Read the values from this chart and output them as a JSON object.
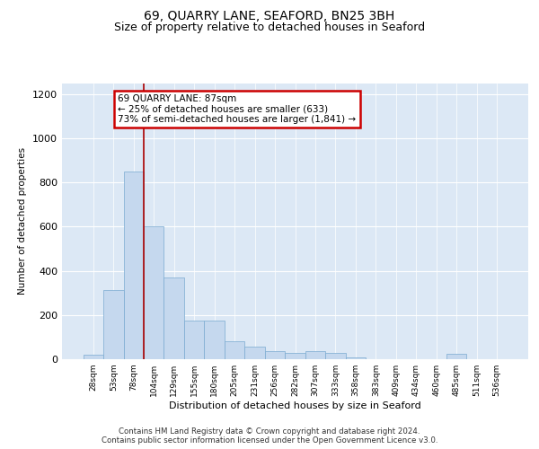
{
  "title": "69, QUARRY LANE, SEAFORD, BN25 3BH",
  "subtitle": "Size of property relative to detached houses in Seaford",
  "xlabel": "Distribution of detached houses by size in Seaford",
  "ylabel": "Number of detached properties",
  "categories": [
    "28sqm",
    "53sqm",
    "78sqm",
    "104sqm",
    "129sqm",
    "155sqm",
    "180sqm",
    "205sqm",
    "231sqm",
    "256sqm",
    "282sqm",
    "307sqm",
    "333sqm",
    "358sqm",
    "383sqm",
    "409sqm",
    "434sqm",
    "460sqm",
    "485sqm",
    "511sqm",
    "536sqm"
  ],
  "values": [
    20,
    315,
    850,
    600,
    370,
    175,
    175,
    80,
    55,
    35,
    30,
    35,
    30,
    10,
    0,
    0,
    0,
    0,
    25,
    0,
    0
  ],
  "bar_color": "#c5d8ee",
  "bar_edge_color": "#7aaad0",
  "vline_color": "#aa0000",
  "vline_x": 2.5,
  "annotation_line1": "69 QUARRY LANE: 87sqm",
  "annotation_line2": "← 25% of detached houses are smaller (633)",
  "annotation_line3": "73% of semi-detached houses are larger (1,841) →",
  "annotation_box_edgecolor": "#cc0000",
  "ylim": [
    0,
    1250
  ],
  "yticks": [
    0,
    200,
    400,
    600,
    800,
    1000,
    1200
  ],
  "background_color": "#dce8f5",
  "footer_line1": "Contains HM Land Registry data © Crown copyright and database right 2024.",
  "footer_line2": "Contains public sector information licensed under the Open Government Licence v3.0.",
  "title_fontsize": 10,
  "subtitle_fontsize": 9
}
